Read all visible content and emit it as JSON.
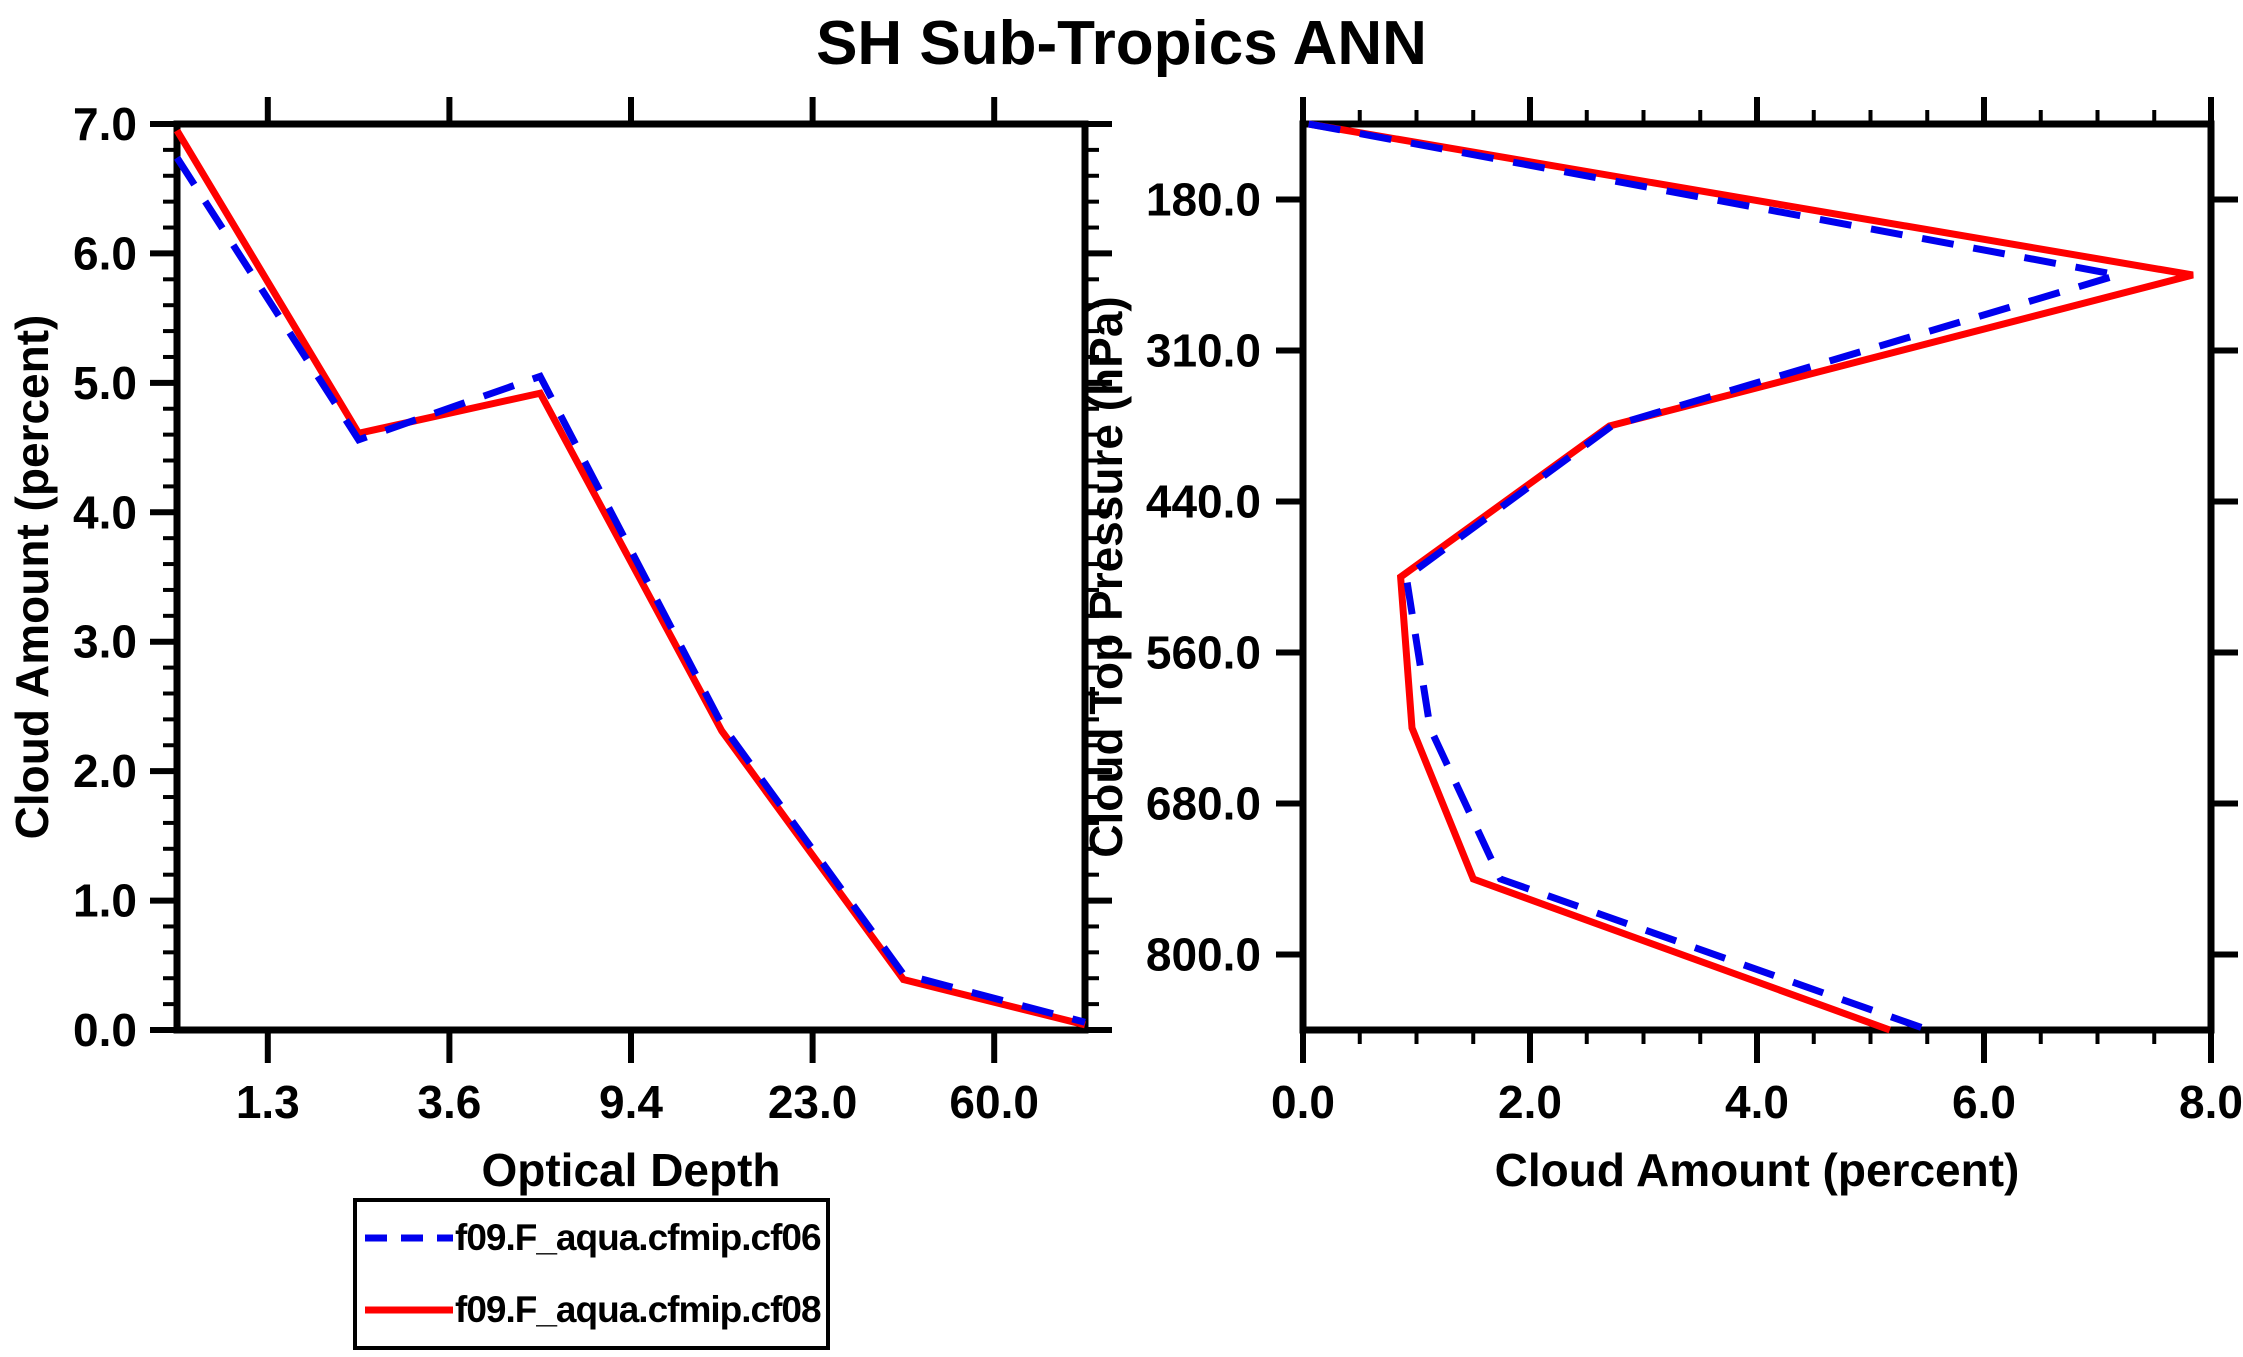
{
  "title": "SH Sub-Tropics ANN",
  "colors": {
    "axis": "#000000",
    "background": "#FFFFFF",
    "series_cf06": "#0000EE",
    "series_cf08": "#FF0000"
  },
  "legend": {
    "entries": [
      {
        "label": "f09.F_aqua.cfmip.cf06",
        "color": "#0000EE",
        "line_style": "dashed"
      },
      {
        "label": "f09.F_aqua.cfmip.cf08",
        "color": "#FF0000",
        "line_style": "solid"
      }
    ]
  },
  "chart_data": [
    {
      "type": "line",
      "panel": "left",
      "xlabel": "Optical Depth",
      "ylabel": "Cloud Amount (percent)",
      "x_axis": {
        "boundary_tick_labels": [
          "1.3",
          "3.6",
          "9.4",
          "23.0",
          "60.0"
        ]
      },
      "y_axis": {
        "min": 0.0,
        "max": 7.0,
        "major_step": 1.0,
        "minor_step": 0.2,
        "tick_labels": [
          "0.0",
          "1.0",
          "2.0",
          "3.0",
          "4.0",
          "5.0",
          "6.0",
          "7.0"
        ]
      },
      "series": [
        {
          "name": "f09.F_aqua.cfmip.cf06",
          "color": "#0000EE",
          "dashed": true,
          "values": [
            6.74,
            4.56,
            5.05,
            2.36,
            0.43,
            0.06
          ]
        },
        {
          "name": "f09.F_aqua.cfmip.cf08",
          "color": "#FF0000",
          "dashed": false,
          "values": [
            6.95,
            4.61,
            4.92,
            2.31,
            0.39,
            0.04
          ]
        }
      ]
    },
    {
      "type": "line",
      "panel": "right",
      "xlabel": "Cloud Amount (percent)",
      "ylabel": "Cloud Top Pressure (hPa)",
      "x_axis": {
        "min": 0.0,
        "max": 8.0,
        "major_step": 2.0,
        "minor_step": 0.5,
        "tick_labels": [
          "0.0",
          "2.0",
          "4.0",
          "6.0",
          "8.0"
        ]
      },
      "y_axis": {
        "boundary_tick_labels": [
          "180.0",
          "310.0",
          "440.0",
          "560.0",
          "680.0",
          "800.0"
        ]
      },
      "series": [
        {
          "name": "f09.F_aqua.cfmip.cf06",
          "color": "#0000EE",
          "dashed": true,
          "values": [
            0.05,
            7.18,
            2.72,
            0.91,
            1.12,
            1.74,
            5.51
          ]
        },
        {
          "name": "f09.F_aqua.cfmip.cf08",
          "color": "#FF0000",
          "dashed": false,
          "values": [
            0.05,
            7.84,
            2.7,
            0.86,
            0.96,
            1.5,
            5.17
          ]
        }
      ]
    }
  ]
}
